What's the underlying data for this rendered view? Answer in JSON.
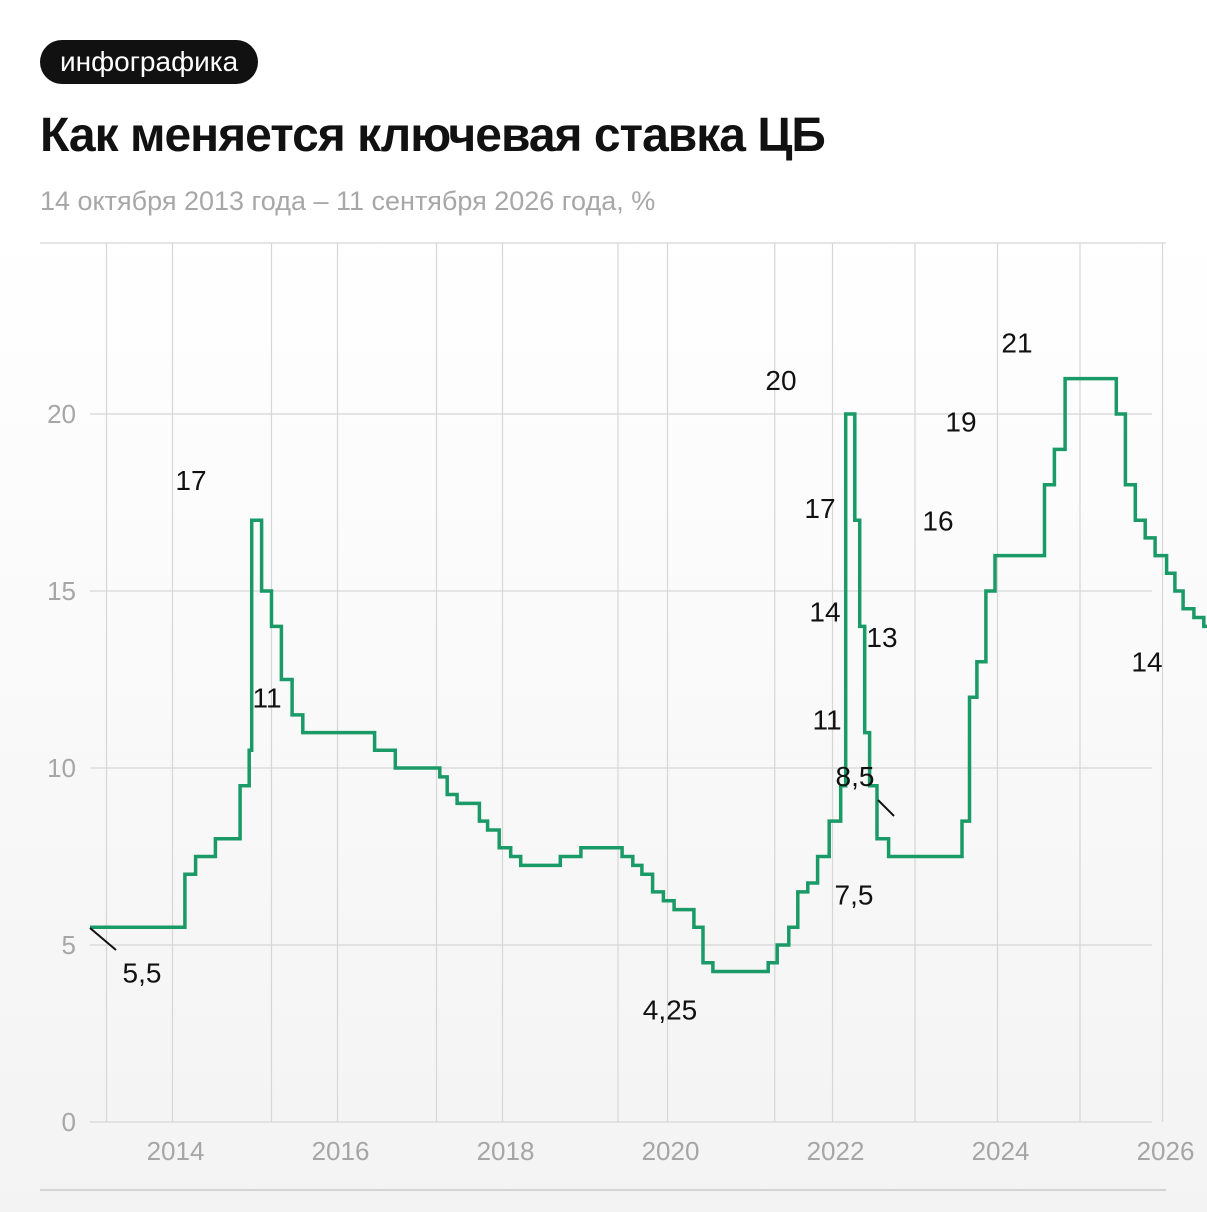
{
  "tag": "инфографика",
  "title": "Как меняется ключевая ставка ЦБ",
  "subtitle": "14 октября 2013 года – 11 сентября 2026 года, %",
  "colors": {
    "line": "#1a9a66",
    "grid": "#d6d6d6",
    "tick": "#a6a6a6"
  },
  "chart_data": {
    "type": "line",
    "step": true,
    "ylim": [
      0,
      21
    ],
    "xlim": [
      2013.0,
      2026.7
    ],
    "yticks": [
      0,
      5,
      10,
      15,
      20
    ],
    "xticks": [
      {
        "label": "2014",
        "year": 2014.0
      },
      {
        "label": "2016",
        "year": 2016.0
      },
      {
        "label": "2018",
        "year": 2018.0
      },
      {
        "label": "2020",
        "year": 2020.0
      },
      {
        "label": "2022",
        "year": 2022.0
      },
      {
        "label": "2024",
        "year": 2024.0
      },
      {
        "label": "2026",
        "year": 2026.0
      }
    ],
    "grid": true,
    "series": [
      {
        "points": [
          [
            2013.79,
            5.5
          ],
          [
            2014.15,
            7.0
          ],
          [
            2014.28,
            7.5
          ],
          [
            2014.52,
            8.0
          ],
          [
            2014.82,
            9.5
          ],
          [
            2014.93,
            10.5
          ],
          [
            2014.96,
            17.0
          ],
          [
            2015.08,
            15.0
          ],
          [
            2015.2,
            14.0
          ],
          [
            2015.32,
            12.5
          ],
          [
            2015.45,
            11.5
          ],
          [
            2015.58,
            11.0
          ],
          [
            2016.45,
            10.5
          ],
          [
            2016.7,
            10.0
          ],
          [
            2017.24,
            9.75
          ],
          [
            2017.33,
            9.25
          ],
          [
            2017.45,
            9.0
          ],
          [
            2017.72,
            8.5
          ],
          [
            2017.82,
            8.25
          ],
          [
            2017.96,
            7.75
          ],
          [
            2018.1,
            7.5
          ],
          [
            2018.22,
            7.25
          ],
          [
            2018.7,
            7.5
          ],
          [
            2018.95,
            7.75
          ],
          [
            2019.45,
            7.5
          ],
          [
            2019.58,
            7.25
          ],
          [
            2019.69,
            7.0
          ],
          [
            2019.82,
            6.5
          ],
          [
            2019.95,
            6.25
          ],
          [
            2020.08,
            6.0
          ],
          [
            2020.32,
            5.5
          ],
          [
            2020.43,
            4.5
          ],
          [
            2020.55,
            4.25
          ],
          [
            2021.22,
            4.5
          ],
          [
            2021.33,
            5.0
          ],
          [
            2021.47,
            5.5
          ],
          [
            2021.58,
            6.5
          ],
          [
            2021.7,
            6.75
          ],
          [
            2021.82,
            7.5
          ],
          [
            2021.96,
            8.5
          ],
          [
            2022.1,
            9.5
          ],
          [
            2022.16,
            20.0
          ],
          [
            2022.27,
            17.0
          ],
          [
            2022.33,
            14.0
          ],
          [
            2022.39,
            11.0
          ],
          [
            2022.45,
            9.5
          ],
          [
            2022.54,
            8.0
          ],
          [
            2022.68,
            7.5
          ],
          [
            2023.57,
            8.5
          ],
          [
            2023.66,
            12.0
          ],
          [
            2023.75,
            13.0
          ],
          [
            2023.86,
            15.0
          ],
          [
            2023.97,
            16.0
          ],
          [
            2024.57,
            18.0
          ],
          [
            2024.69,
            19.0
          ],
          [
            2024.82,
            21.0
          ],
          [
            2025.44,
            20.0
          ],
          [
            2025.55,
            18.0
          ],
          [
            2025.67,
            17.0
          ],
          [
            2025.79,
            16.5
          ],
          [
            2025.91,
            16.0
          ],
          [
            2026.05,
            15.5
          ],
          [
            2026.15,
            15.0
          ],
          [
            2026.25,
            14.5
          ],
          [
            2026.38,
            14.25
          ],
          [
            2026.5,
            14.0
          ],
          [
            2026.7,
            14.0
          ]
        ]
      }
    ],
    "annotations": [
      {
        "text": "5,5",
        "x": 2013.79,
        "y": 5.5
      },
      {
        "text": "17",
        "x": 2014.96,
        "y": 17.0
      },
      {
        "text": "11",
        "x": 2015.58,
        "y": 11.0
      },
      {
        "text": "4,25",
        "x": 2020.55,
        "y": 4.25
      },
      {
        "text": "20",
        "x": 2022.16,
        "y": 20.0
      },
      {
        "text": "17",
        "x": 2022.27,
        "y": 17.0
      },
      {
        "text": "14",
        "x": 2022.33,
        "y": 14.0
      },
      {
        "text": "11",
        "x": 2022.39,
        "y": 11.0
      },
      {
        "text": "8,5",
        "x": 2023.57,
        "y": 8.5
      },
      {
        "text": "7,5",
        "x": 2022.68,
        "y": 7.5
      },
      {
        "text": "13",
        "x": 2023.75,
        "y": 13.0
      },
      {
        "text": "16",
        "x": 2023.97,
        "y": 16.0
      },
      {
        "text": "19",
        "x": 2024.69,
        "y": 19.0
      },
      {
        "text": "21",
        "x": 2024.82,
        "y": 21.0
      },
      {
        "text": "14",
        "x": 2026.5,
        "y": 14.0
      }
    ]
  }
}
